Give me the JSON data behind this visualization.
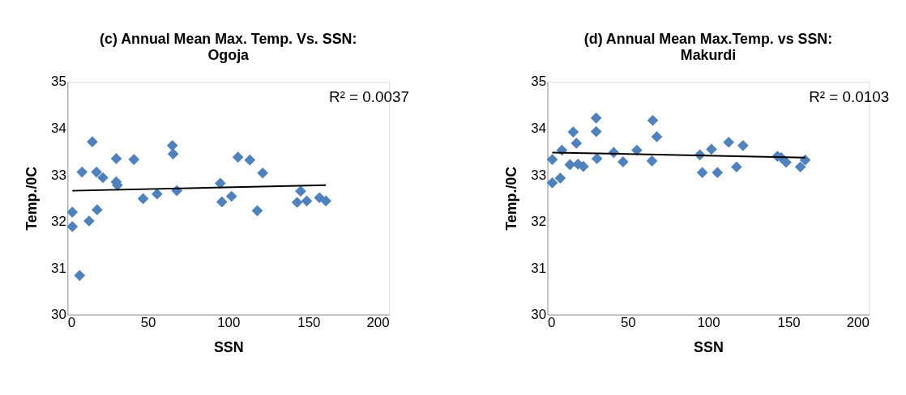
{
  "chart_data": [
    {
      "type": "scatter",
      "title": "(c) Annual Mean Max. Temp. Vs. SSN: Ogoja",
      "xlabel": "SSN",
      "ylabel": "Temp./0C",
      "annotations": [
        "R² = 0.0037"
      ],
      "xlim": [
        0,
        200
      ],
      "xticks": [
        0,
        50,
        100,
        150,
        200
      ],
      "ylim": [
        30,
        35
      ],
      "yticks": [
        30,
        31,
        32,
        33,
        34,
        35
      ],
      "grid": false,
      "marker": "diamond",
      "series": [
        {
          "color": "#4f81bd",
          "x": [
            3,
            3,
            7.5,
            9,
            15.4,
            13.4,
            18.4,
            18,
            22,
            30.3,
            30.3,
            31,
            41.3,
            47,
            55.7,
            65.2,
            65.7,
            68,
            95,
            96,
            102,
            106,
            113.4,
            121.4,
            118,
            145,
            142.8,
            148.8,
            156.7,
            160.7
          ],
          "values": [
            32.2,
            31.89,
            30.84,
            33.06,
            33.71,
            32.01,
            32.25,
            33.06,
            32.94,
            33.35,
            32.85,
            32.78,
            33.33,
            32.49,
            32.59,
            33.63,
            33.45,
            32.66,
            32.82,
            32.42,
            32.54,
            33.38,
            33.32,
            33.04,
            32.23,
            32.65,
            32.41,
            32.44,
            32.51,
            32.44
          ]
        },
        {
          "type": "line",
          "marker": "none",
          "line_style": "solid",
          "color": "#000000",
          "x": [
            3,
            160.7
          ],
          "values": [
            32.66,
            32.78
          ]
        }
      ]
    },
    {
      "type": "scatter",
      "title": "(d) Annual Mean Max.Temp. vs SSN: Makurdi",
      "xlabel": "SSN",
      "ylabel": "Temp./0C",
      "annotations": [
        "R² = 0.0103"
      ],
      "xlim": [
        0,
        200
      ],
      "xticks": [
        0,
        50,
        100,
        150,
        200
      ],
      "ylim": [
        30,
        35
      ],
      "yticks": [
        30,
        31,
        32,
        33,
        34,
        35
      ],
      "grid": false,
      "marker": "diamond",
      "series": [
        {
          "color": "#4f81bd",
          "x": [
            3,
            9,
            3,
            8,
            16,
            18,
            14,
            19,
            22.3,
            30.3,
            30.3,
            30.8,
            41.2,
            47,
            55.6,
            65.5,
            68,
            65,
            94.8,
            96.3,
            102,
            105.7,
            112.7,
            121.6,
            117.6,
            143,
            145.4,
            148.4,
            157.3,
            160.3
          ],
          "values": [
            33.33,
            33.53,
            32.83,
            32.93,
            33.92,
            33.68,
            33.22,
            33.23,
            33.18,
            34.22,
            33.93,
            33.35,
            33.48,
            33.28,
            33.53,
            34.17,
            33.82,
            33.3,
            33.43,
            33.05,
            33.55,
            33.05,
            33.7,
            33.63,
            33.17,
            33.4,
            33.37,
            33.27,
            33.17,
            33.32
          ]
        },
        {
          "type": "line",
          "marker": "none",
          "line_style": "solid",
          "color": "#000000",
          "x": [
            3,
            160.3
          ],
          "values": [
            33.48,
            33.37
          ]
        }
      ]
    }
  ]
}
